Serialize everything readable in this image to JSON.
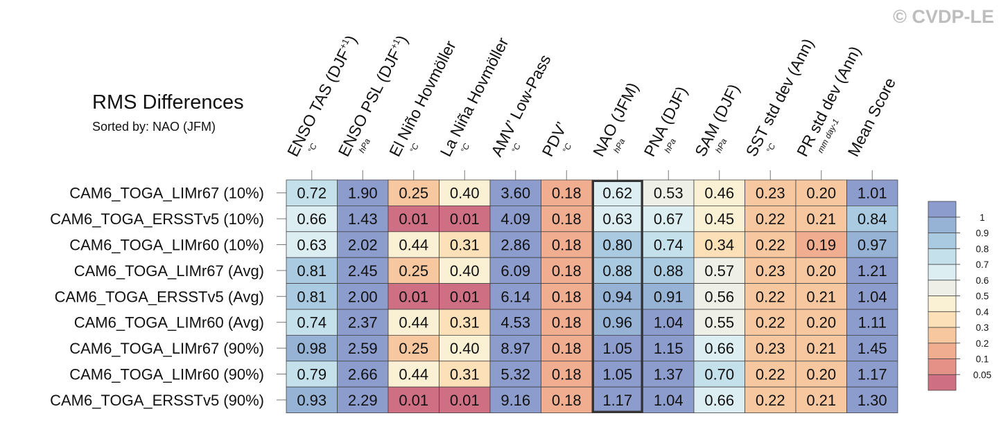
{
  "header": {
    "title": "RMS Differences",
    "subtitle": "Sorted by: NAO (JFM)",
    "watermark": "© CVDP-LE"
  },
  "colors": {
    "scale": [
      "#cf6f83",
      "#e59188",
      "#f0ad90",
      "#f7c8a0",
      "#fbe0b8",
      "#faf0d3",
      "#eef0e8",
      "#dceef2",
      "#c4e0eb",
      "#a9cae0",
      "#96b3d6",
      "#8c9ccc"
    ],
    "highlight_border": "#333333",
    "grid": "#444444"
  },
  "chart_data": {
    "type": "heatmap",
    "title": "RMS Differences",
    "subtitle": "Sorted by: NAO (JFM)",
    "columns": [
      {
        "name": "ENSO TAS (DJF",
        "sup": "+1",
        "tail": ")",
        "unit": "°C"
      },
      {
        "name": "ENSO PSL (DJF",
        "sup": "+1",
        "tail": ")",
        "unit": "hPa"
      },
      {
        "name": "El Niño Hovmöller",
        "sup": "",
        "tail": "",
        "unit": "°C"
      },
      {
        "name": "La Niña Hovmöller",
        "sup": "",
        "tail": "",
        "unit": "°C"
      },
      {
        "name": "AMV’ Low-Pass",
        "sup": "",
        "tail": "",
        "unit": "°C"
      },
      {
        "name": "PDV’",
        "sup": "",
        "tail": "",
        "unit": "°C"
      },
      {
        "name": "NAO (JFM)",
        "sup": "",
        "tail": "",
        "unit": "hPa"
      },
      {
        "name": "PNA (DJF)",
        "sup": "",
        "tail": "",
        "unit": "hPa"
      },
      {
        "name": "SAM (DJF)",
        "sup": "",
        "tail": "",
        "unit": "hPa"
      },
      {
        "name": "SST std dev (Ann)",
        "sup": "",
        "tail": "",
        "unit": "°C"
      },
      {
        "name": "PR std dev (Ann)",
        "sup": "",
        "tail": "",
        "unit": "mm day-1"
      },
      {
        "name": "Mean Score",
        "sup": "",
        "tail": "",
        "unit": ""
      }
    ],
    "rows": [
      "CAM6_TOGA_LIMr67 (10%)",
      "CAM6_TOGA_ERSSTv5 (10%)",
      "CAM6_TOGA_LIMr60 (10%)",
      "CAM6_TOGA_LIMr67 (Avg)",
      "CAM6_TOGA_ERSSTv5 (Avg)",
      "CAM6_TOGA_LIMr60 (Avg)",
      "CAM6_TOGA_LIMr67 (90%)",
      "CAM6_TOGA_LIMr60 (90%)",
      "CAM6_TOGA_ERSSTv5 (90%)"
    ],
    "values": [
      [
        "0.72",
        "1.90",
        "0.25",
        "0.40",
        "3.60",
        "0.18",
        "0.62",
        "0.53",
        "0.46",
        "0.23",
        "0.20",
        "1.01"
      ],
      [
        "0.66",
        "1.43",
        "0.01",
        "0.01",
        "4.09",
        "0.18",
        "0.63",
        "0.67",
        "0.45",
        "0.22",
        "0.21",
        "0.84"
      ],
      [
        "0.63",
        "2.02",
        "0.44",
        "0.31",
        "2.86",
        "0.18",
        "0.80",
        "0.74",
        "0.34",
        "0.22",
        "0.19",
        "0.97"
      ],
      [
        "0.81",
        "2.45",
        "0.25",
        "0.40",
        "6.09",
        "0.18",
        "0.88",
        "0.88",
        "0.57",
        "0.23",
        "0.20",
        "1.21"
      ],
      [
        "0.81",
        "2.00",
        "0.01",
        "0.01",
        "6.14",
        "0.18",
        "0.94",
        "0.91",
        "0.56",
        "0.22",
        "0.21",
        "1.04"
      ],
      [
        "0.74",
        "2.37",
        "0.44",
        "0.31",
        "4.53",
        "0.18",
        "0.96",
        "1.04",
        "0.55",
        "0.22",
        "0.20",
        "1.11"
      ],
      [
        "0.98",
        "2.59",
        "0.25",
        "0.40",
        "8.97",
        "0.18",
        "1.05",
        "1.15",
        "0.66",
        "0.23",
        "0.21",
        "1.45"
      ],
      [
        "0.79",
        "2.66",
        "0.44",
        "0.31",
        "5.32",
        "0.18",
        "1.05",
        "1.37",
        "0.70",
        "0.22",
        "0.20",
        "1.17"
      ],
      [
        "0.93",
        "2.29",
        "0.01",
        "0.01",
        "9.16",
        "0.18",
        "1.17",
        "1.04",
        "0.66",
        "0.22",
        "0.21",
        "1.30"
      ]
    ],
    "highlight_column": "NAO (JFM)",
    "legend": {
      "levels": [
        "0.05",
        "0.1",
        "0.2",
        "0.3",
        "0.4",
        "0.5",
        "0.6",
        "0.7",
        "0.8",
        "0.9",
        "1"
      ],
      "placement": "right"
    },
    "grid": true
  }
}
